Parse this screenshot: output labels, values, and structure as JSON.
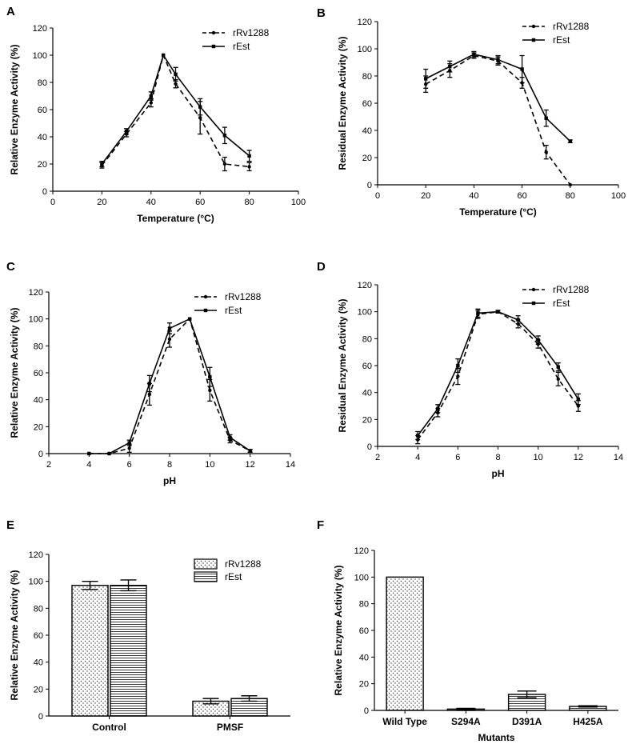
{
  "figure": {
    "panel_letters": [
      "A",
      "B",
      "C",
      "D",
      "E",
      "F"
    ]
  },
  "chart_data": [
    {
      "panel": "A",
      "type": "line",
      "title": "",
      "xlabel": "Temperature (°C)",
      "ylabel": "Relative Enzyme Activity (%)",
      "xlim": [
        0,
        100
      ],
      "ylim": [
        0,
        120
      ],
      "xticks": [
        0,
        20,
        40,
        60,
        80,
        100
      ],
      "yticks": [
        0,
        20,
        40,
        60,
        80,
        100,
        120
      ],
      "legend": [
        "rRv1288",
        "rEst"
      ],
      "legend_position": "top-right",
      "series": [
        {
          "name": "rRv1288",
          "style": "dashed",
          "x": [
            20,
            30,
            40,
            45,
            50,
            60,
            70,
            80
          ],
          "y": [
            19,
            42,
            65,
            100,
            79,
            54,
            20,
            18
          ],
          "err": [
            2,
            2,
            3,
            0,
            3,
            12,
            5,
            3
          ]
        },
        {
          "name": "rEst",
          "style": "solid",
          "x": [
            20,
            30,
            40,
            45,
            50,
            60,
            70,
            80
          ],
          "y": [
            20,
            44,
            70,
            100,
            86,
            62,
            41,
            26
          ],
          "err": [
            2,
            2,
            3,
            0,
            5,
            6,
            6,
            4
          ]
        }
      ]
    },
    {
      "panel": "B",
      "type": "line",
      "title": "",
      "xlabel": "Temperature (°C)",
      "ylabel": "Residual Enzyme Activity (%)",
      "xlim": [
        0,
        100
      ],
      "ylim": [
        0,
        120
      ],
      "xticks": [
        0,
        20,
        40,
        60,
        80,
        100
      ],
      "yticks": [
        0,
        20,
        40,
        60,
        80,
        100,
        120
      ],
      "legend": [
        "rRv1288",
        "rEst"
      ],
      "legend_position": "top-right",
      "series": [
        {
          "name": "rRv1288",
          "style": "dashed",
          "x": [
            20,
            30,
            40,
            50,
            60,
            70,
            80
          ],
          "y": [
            74,
            84,
            95,
            91,
            75,
            24,
            0
          ],
          "err": [
            6,
            5,
            2,
            3,
            4,
            5,
            0
          ]
        },
        {
          "name": "rEst",
          "style": "solid",
          "x": [
            20,
            30,
            40,
            50,
            60,
            70,
            80
          ],
          "y": [
            78,
            87,
            96,
            92,
            85,
            49,
            32
          ],
          "err": [
            7,
            4,
            2,
            3,
            10,
            6,
            1
          ]
        }
      ]
    },
    {
      "panel": "C",
      "type": "line",
      "title": "",
      "xlabel": "pH",
      "ylabel": "Relative Enzyme Activity (%)",
      "xlim": [
        2,
        14
      ],
      "ylim": [
        0,
        120
      ],
      "xticks": [
        2,
        4,
        6,
        8,
        10,
        12,
        14
      ],
      "yticks": [
        0,
        20,
        40,
        60,
        80,
        100,
        120
      ],
      "legend": [
        "rRv1288",
        "rEst"
      ],
      "legend_position": "top-right",
      "series": [
        {
          "name": "rRv1288",
          "style": "dashed",
          "x": [
            4,
            5,
            6,
            7,
            8,
            9,
            10,
            11,
            12
          ],
          "y": [
            0,
            0,
            4,
            44,
            85,
            100,
            47,
            10,
            2
          ],
          "err": [
            0,
            0,
            3,
            8,
            6,
            0,
            8,
            2,
            1
          ]
        },
        {
          "name": "rEst",
          "style": "solid",
          "x": [
            4,
            5,
            6,
            7,
            8,
            9,
            10,
            11,
            12
          ],
          "y": [
            0,
            0,
            8,
            52,
            93,
            100,
            57,
            12,
            2
          ],
          "err": [
            0,
            0,
            2,
            6,
            4,
            0,
            7,
            2,
            1
          ]
        }
      ]
    },
    {
      "panel": "D",
      "type": "line",
      "title": "",
      "xlabel": "pH",
      "ylabel": "Residual Enzyme Activity (%)",
      "xlim": [
        2,
        14
      ],
      "ylim": [
        0,
        120
      ],
      "xticks": [
        2,
        4,
        6,
        8,
        10,
        12,
        14
      ],
      "yticks": [
        0,
        20,
        40,
        60,
        80,
        100,
        120
      ],
      "legend": [
        "rRv1288",
        "rEst"
      ],
      "legend_position": "top-right",
      "series": [
        {
          "name": "rRv1288",
          "style": "dashed",
          "x": [
            4,
            5,
            6,
            7,
            8,
            9,
            10,
            11,
            12
          ],
          "y": [
            5,
            25,
            52,
            98,
            100,
            91,
            76,
            50,
            30
          ],
          "err": [
            3,
            3,
            6,
            3,
            1,
            3,
            3,
            5,
            4
          ]
        },
        {
          "name": "rEst",
          "style": "solid",
          "x": [
            4,
            5,
            6,
            7,
            8,
            9,
            10,
            11,
            12
          ],
          "y": [
            8,
            28,
            60,
            99,
            100,
            94,
            79,
            59,
            35
          ],
          "err": [
            3,
            3,
            5,
            3,
            1,
            3,
            3,
            3,
            4
          ]
        }
      ]
    },
    {
      "panel": "E",
      "type": "bar",
      "title": "",
      "xlabel": "",
      "ylabel": "Relative Enzyme Activity (%)",
      "ylim": [
        0,
        120
      ],
      "yticks": [
        0,
        20,
        40,
        60,
        80,
        100,
        120
      ],
      "categories": [
        "Control",
        "PMSF"
      ],
      "legend": [
        "rRv1288",
        "rEst"
      ],
      "legend_position": "top-right",
      "series": [
        {
          "name": "rRv1288",
          "pattern": "dots",
          "values": [
            97,
            11
          ],
          "err": [
            3,
            2
          ]
        },
        {
          "name": "rEst",
          "pattern": "hlines",
          "values": [
            97,
            13
          ],
          "err": [
            4,
            2
          ]
        }
      ]
    },
    {
      "panel": "F",
      "type": "bar",
      "title": "",
      "xlabel": "Mutants",
      "ylabel": "Relative Enzyme Activity (%)",
      "ylim": [
        0,
        120
      ],
      "yticks": [
        0,
        20,
        40,
        60,
        80,
        100,
        120
      ],
      "categories": [
        "Wild Type",
        "S294A",
        "D391A",
        "H425A"
      ],
      "patterns": [
        "dots",
        "hlines",
        "hlines",
        "hlines"
      ],
      "values": [
        100,
        1,
        12,
        3
      ],
      "err": [
        0,
        0.5,
        2.5,
        0.5
      ]
    }
  ]
}
